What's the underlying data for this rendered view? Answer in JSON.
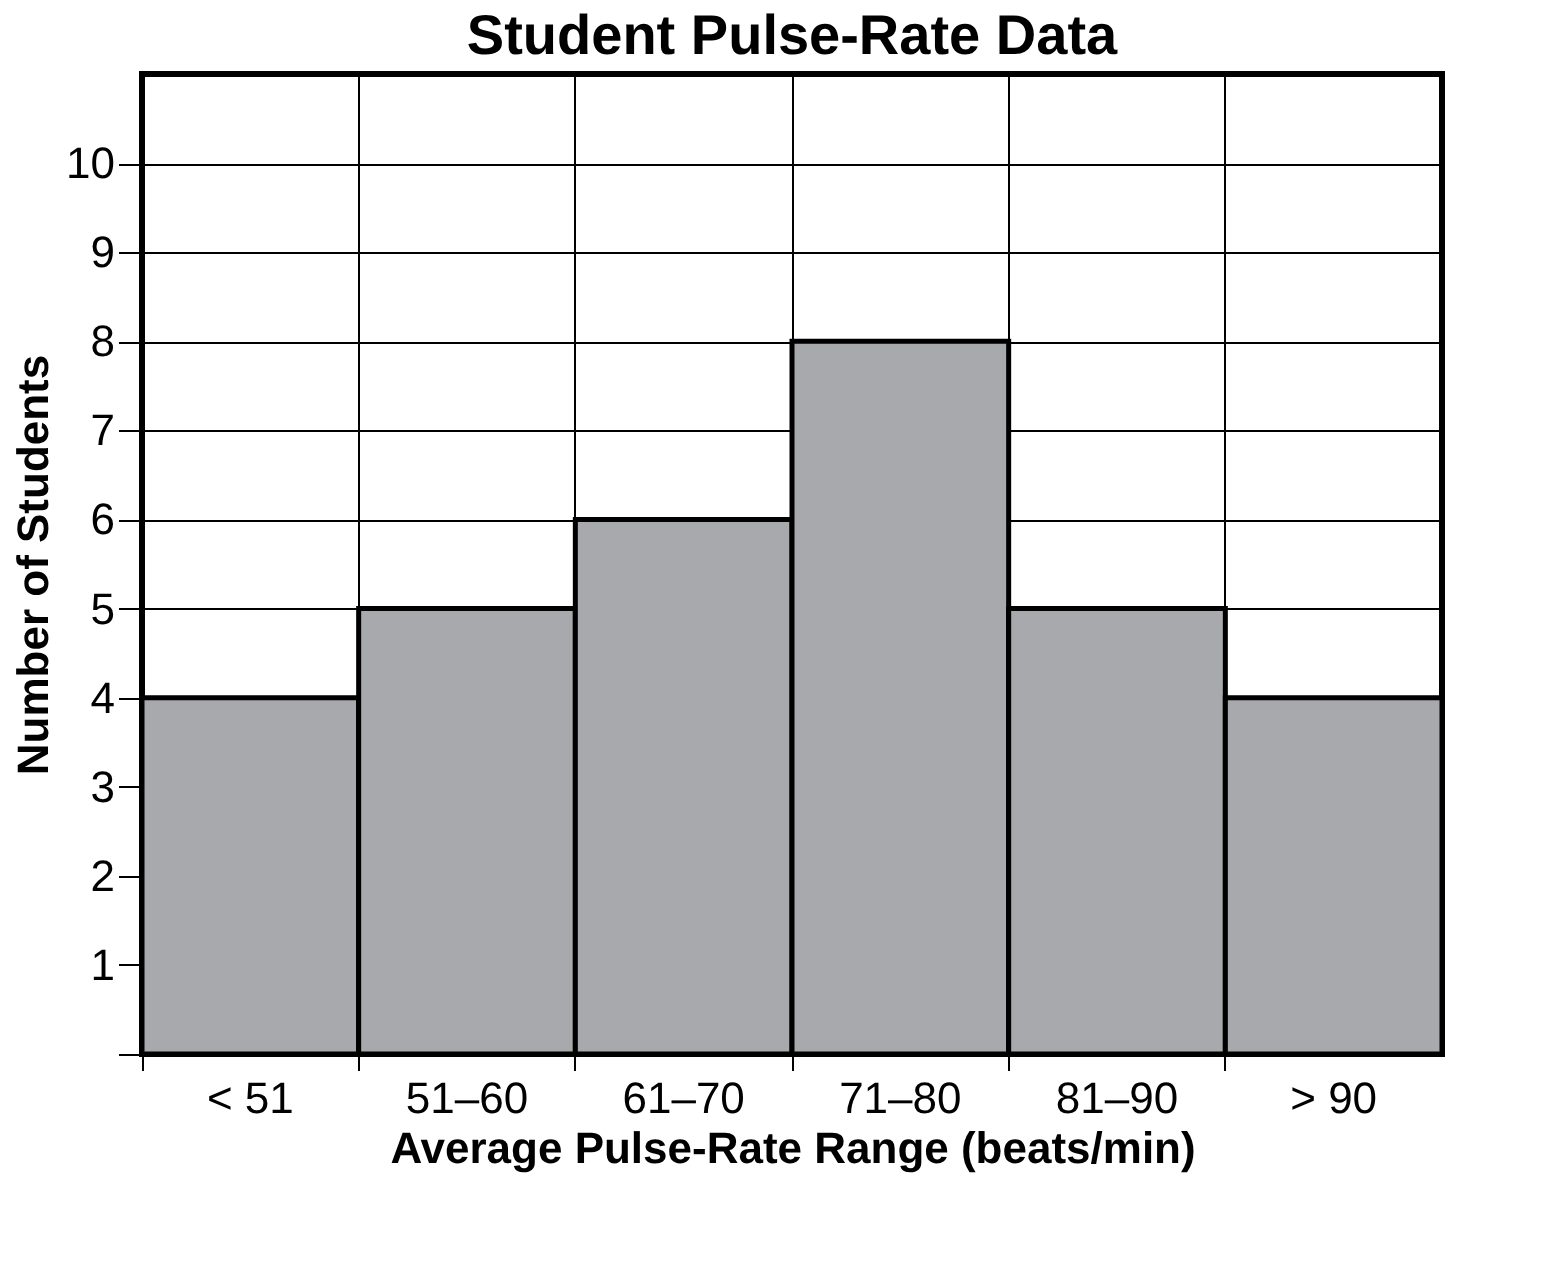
{
  "chart_data": {
    "type": "bar",
    "title": "Student Pulse-Rate Data",
    "xlabel": "Average Pulse-Rate Range (beats/min)",
    "ylabel": "Number of Students",
    "categories": [
      "< 51",
      "51–60",
      "61–70",
      "71–80",
      "81–90",
      "> 90"
    ],
    "values": [
      4,
      5,
      6,
      8,
      5,
      4
    ],
    "color": "#a7a9ac",
    "ylim": [
      0,
      11
    ],
    "yticks": [
      {
        "value": 0,
        "label": null
      },
      1,
      2,
      3,
      4,
      5,
      6,
      7,
      8,
      9,
      10
    ],
    "grid": true
  }
}
